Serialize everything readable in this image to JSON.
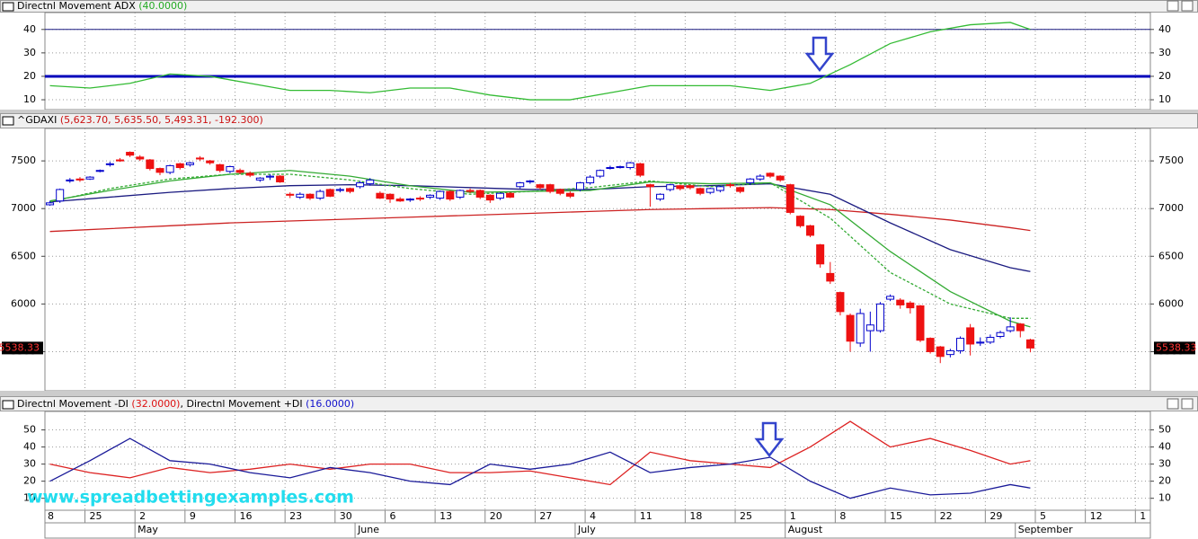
{
  "chart_data": [
    {
      "type": "line",
      "title": "Directnl Movement ADX",
      "title_value": "(40.0000)",
      "ylim": [
        5.8,
        47.2
      ],
      "yticks": [
        10,
        20,
        30,
        40
      ],
      "grid": true,
      "hlines": [
        40,
        20
      ],
      "x": [
        0,
        4,
        8,
        12,
        16,
        20,
        24,
        28,
        32,
        36,
        40,
        44,
        48,
        52,
        56,
        60,
        64,
        68,
        72,
        76,
        80,
        84,
        88,
        92,
        96,
        98
      ],
      "series": [
        {
          "color": "#33bb33",
          "values": [
            16,
            15,
            17,
            21,
            20,
            17,
            14,
            14,
            13,
            15,
            15,
            12,
            10,
            10,
            13,
            16,
            16,
            16,
            14,
            17,
            25,
            34,
            39,
            42,
            43,
            40
          ]
        }
      ]
    },
    {
      "type": "candlestick",
      "title": "^GDAXI",
      "title_value": "(5,623.70, 5,635.50, 5,493.31, -192.300)",
      "ylim": [
        5090,
        7840
      ],
      "yticks": [
        5500,
        6000,
        6500,
        7000,
        7500
      ],
      "grid": true,
      "up_color": "#0000cc",
      "down_color": "#ee1111",
      "open": [
        7040,
        7080,
        7290,
        7310,
        7310,
        7390,
        7460,
        7510,
        7590,
        7540,
        7510,
        7420,
        7380,
        7470,
        7460,
        7530,
        7500,
        7460,
        7390,
        7400,
        7370,
        7300,
        7330,
        7340,
        7150,
        7120,
        7150,
        7110,
        7200,
        7190,
        7210,
        7230,
        7260,
        7160,
        7150,
        7100,
        7090,
        7110,
        7120,
        7110,
        7180,
        7120,
        7190,
        7190,
        7140,
        7110,
        7160,
        7230,
        7280,
        7250,
        7250,
        7200,
        7160,
        7200,
        7270,
        7340,
        7430,
        7430,
        7430,
        7470,
        7250,
        7100,
        7200,
        7240,
        7240,
        7210,
        7170,
        7190,
        7250,
        7220,
        7270,
        7310,
        7370,
        7340,
        7250,
        6920,
        6820,
        6620,
        6320,
        6120,
        5880,
        5590,
        5720,
        5720,
        6050,
        6040,
        6010,
        5980,
        5640,
        5550,
        5470,
        5510,
        5750,
        5590,
        5600,
        5660,
        5720,
        5790,
        5623.7
      ],
      "high": [
        7080,
        7210,
        7320,
        7330,
        7340,
        7410,
        7490,
        7530,
        7600,
        7560,
        7520,
        7430,
        7460,
        7480,
        7490,
        7550,
        7510,
        7470,
        7450,
        7420,
        7390,
        7330,
        7360,
        7350,
        7170,
        7170,
        7160,
        7200,
        7210,
        7220,
        7220,
        7290,
        7320,
        7180,
        7160,
        7120,
        7110,
        7130,
        7150,
        7190,
        7190,
        7200,
        7210,
        7200,
        7150,
        7170,
        7170,
        7280,
        7300,
        7260,
        7260,
        7210,
        7180,
        7280,
        7350,
        7410,
        7450,
        7450,
        7490,
        7480,
        7260,
        7160,
        7260,
        7250,
        7250,
        7220,
        7220,
        7240,
        7270,
        7230,
        7320,
        7360,
        7380,
        7350,
        7260,
        6930,
        6830,
        6630,
        6440,
        6130,
        5900,
        5950,
        5920,
        6020,
        6100,
        6060,
        6030,
        5990,
        5650,
        5560,
        5530,
        5660,
        5790,
        5650,
        5680,
        5720,
        5860,
        5800,
        5635.5
      ],
      "low": [
        7030,
        7060,
        7270,
        7280,
        7300,
        7380,
        7440,
        7490,
        7540,
        7500,
        7400,
        7350,
        7360,
        7410,
        7440,
        7500,
        7460,
        7380,
        7370,
        7360,
        7330,
        7280,
        7300,
        7270,
        7110,
        7100,
        7090,
        7090,
        7120,
        7170,
        7160,
        7210,
        7240,
        7100,
        7060,
        7070,
        7070,
        7080,
        7100,
        7090,
        7080,
        7100,
        7160,
        7100,
        7060,
        7090,
        7110,
        7210,
        7260,
        7200,
        7160,
        7140,
        7110,
        7180,
        7250,
        7320,
        7410,
        7420,
        7410,
        7330,
        7020,
        7080,
        7180,
        7190,
        7200,
        7140,
        7150,
        7170,
        7220,
        7160,
        7250,
        7290,
        7320,
        7280,
        6940,
        6800,
        6700,
        6380,
        6210,
        5880,
        5500,
        5550,
        5500,
        5700,
        6030,
        5950,
        5900,
        5600,
        5480,
        5380,
        5440,
        5480,
        5460,
        5560,
        5580,
        5640,
        5700,
        5650,
        5493.31
      ],
      "close": [
        7060,
        7200,
        7300,
        7300,
        7330,
        7400,
        7470,
        7500,
        7560,
        7520,
        7420,
        7380,
        7450,
        7430,
        7480,
        7520,
        7480,
        7400,
        7440,
        7380,
        7350,
        7320,
        7340,
        7280,
        7140,
        7150,
        7110,
        7180,
        7130,
        7200,
        7180,
        7270,
        7300,
        7110,
        7100,
        7080,
        7100,
        7100,
        7140,
        7180,
        7100,
        7190,
        7180,
        7120,
        7090,
        7160,
        7120,
        7270,
        7290,
        7220,
        7180,
        7160,
        7130,
        7270,
        7330,
        7400,
        7430,
        7440,
        7480,
        7350,
        7230,
        7150,
        7250,
        7210,
        7220,
        7160,
        7210,
        7230,
        7240,
        7180,
        7310,
        7340,
        7340,
        7300,
        6960,
        6820,
        6720,
        6420,
        6240,
        5920,
        5610,
        5900,
        5780,
        6000,
        6080,
        5990,
        5960,
        5620,
        5500,
        5450,
        5510,
        5640,
        5580,
        5600,
        5650,
        5700,
        5760,
        5720,
        5538.33
      ],
      "last_value_label": "5538.33",
      "ma_x": [
        0,
        6,
        12,
        18,
        24,
        30,
        36,
        42,
        48,
        54,
        60,
        66,
        72,
        78,
        84,
        90,
        96,
        98
      ],
      "series": [
        {
          "color": "#cc2222",
          "values": [
            6760,
            6790,
            6820,
            6850,
            6870,
            6890,
            6910,
            6930,
            6950,
            6970,
            6990,
            7000,
            7010,
            6990,
            6940,
            6880,
            6800,
            6770
          ]
        },
        {
          "color": "#1a1a80",
          "values": [
            7070,
            7120,
            7170,
            7210,
            7240,
            7250,
            7240,
            7220,
            7200,
            7200,
            7230,
            7240,
            7260,
            7150,
            6850,
            6570,
            6380,
            6340
          ]
        },
        {
          "color": "#33aa33",
          "values": [
            7080,
            7190,
            7290,
            7360,
            7400,
            7340,
            7240,
            7170,
            7180,
            7190,
            7280,
            7260,
            7270,
            7040,
            6550,
            6130,
            5820,
            5760
          ]
        },
        {
          "color": "#33aa33",
          "dashed": true,
          "values": [
            7070,
            7210,
            7310,
            7360,
            7360,
            7300,
            7210,
            7150,
            7180,
            7220,
            7290,
            7230,
            7270,
            6900,
            6330,
            6000,
            5850,
            5850
          ]
        }
      ]
    },
    {
      "type": "line",
      "title": "Directnl Movement -DI",
      "title_value": "(32.0000)",
      "title2": ", Directnl Movement +DI",
      "title2_value": "(16.0000)",
      "ylim": [
        3,
        60.8
      ],
      "yticks": [
        10,
        20,
        30,
        40,
        50
      ],
      "grid": true,
      "x": [
        0,
        4,
        8,
        12,
        16,
        20,
        24,
        28,
        32,
        36,
        40,
        44,
        48,
        52,
        56,
        60,
        64,
        68,
        72,
        76,
        80,
        84,
        88,
        92,
        96,
        98
      ],
      "series": [
        {
          "color": "#dd2222",
          "values": [
            30,
            25,
            22,
            28,
            25,
            27,
            30,
            27,
            30,
            30,
            25,
            25,
            26,
            22,
            18,
            37,
            32,
            30,
            28,
            40,
            55,
            40,
            45,
            38,
            30,
            32
          ]
        },
        {
          "color": "#1a1a99",
          "values": [
            20,
            32,
            45,
            32,
            30,
            25,
            22,
            28,
            25,
            20,
            18,
            30,
            27,
            30,
            37,
            25,
            28,
            30,
            34,
            20,
            10,
            16,
            12,
            13,
            18,
            16
          ]
        }
      ]
    }
  ],
  "x_axis": {
    "xlim": [
      -0.5,
      110
    ],
    "ticks": [
      {
        "value": -1.5,
        "label": "8"
      },
      {
        "value": 3.5,
        "label": "25"
      },
      {
        "value": 8.5,
        "label": "2"
      },
      {
        "value": 13.5,
        "label": "9"
      },
      {
        "value": 18.5,
        "label": "16"
      },
      {
        "value": 23.5,
        "label": "23"
      },
      {
        "value": 28.5,
        "label": "30"
      },
      {
        "value": 33.5,
        "label": "6"
      },
      {
        "value": 38.5,
        "label": "13"
      },
      {
        "value": 43.5,
        "label": "20"
      },
      {
        "value": 48.5,
        "label": "27"
      },
      {
        "value": 53.5,
        "label": "4"
      },
      {
        "value": 58.5,
        "label": "11"
      },
      {
        "value": 63.5,
        "label": "18"
      },
      {
        "value": 68.5,
        "label": "25"
      },
      {
        "value": 73.5,
        "label": "1"
      },
      {
        "value": 78.5,
        "label": "8"
      },
      {
        "value": 83.5,
        "label": "15"
      },
      {
        "value": 88.5,
        "label": "22"
      },
      {
        "value": 93.5,
        "label": "29"
      },
      {
        "value": 98.5,
        "label": "5"
      },
      {
        "value": 103.5,
        "label": "12"
      },
      {
        "value": 108.5,
        "label": "1"
      }
    ],
    "months": [
      {
        "value": 8.5,
        "label": "May"
      },
      {
        "value": 30.5,
        "label": "June"
      },
      {
        "value": 52.5,
        "label": "July"
      },
      {
        "value": 73.5,
        "label": "August"
      },
      {
        "value": 96.5,
        "label": "September"
      }
    ]
  },
  "watermark": "www.spreadbettingexamples.com"
}
